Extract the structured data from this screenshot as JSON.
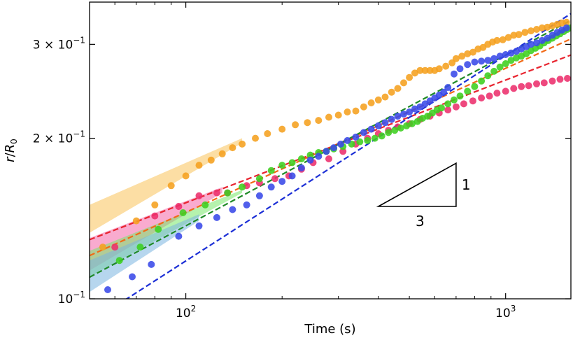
{
  "chart_data": {
    "type": "scatter",
    "xscale": "log",
    "yscale": "log",
    "xlim": [
      50,
      1600
    ],
    "ylim": [
      0.1,
      0.36
    ],
    "xlabel": "Time (s)",
    "ylabel": "r/R0",
    "xticks": [
      {
        "value": 100,
        "base": "10",
        "exp": "2"
      },
      {
        "value": 1000,
        "base": "10",
        "exp": "3"
      }
    ],
    "yticks": [
      {
        "value": 0.1,
        "mant": "",
        "exp": "−1"
      },
      {
        "value": 0.2,
        "mant": "2 × ",
        "exp": "−1"
      },
      {
        "value": 0.3,
        "mant": "3 × ",
        "exp": "−1"
      }
    ],
    "grid": false,
    "legend": "none",
    "series": [
      {
        "color": "#f5a11f",
        "fit_color": "#f26a16",
        "band_color": "#f9c35a",
        "fit": {
          "a": 0.0419,
          "slope": 0.27
        },
        "band": [
          [
            50,
            0.133,
            0.15
          ],
          [
            150,
            0.196,
            0.2
          ]
        ],
        "points": [
          [
            55,
            0.125
          ],
          [
            70,
            0.14
          ],
          [
            80,
            0.15
          ],
          [
            90,
            0.163
          ],
          [
            100,
            0.17
          ],
          [
            110,
            0.178
          ],
          [
            120,
            0.182
          ],
          [
            130,
            0.187
          ],
          [
            140,
            0.192
          ],
          [
            150,
            0.195
          ],
          [
            165,
            0.2
          ],
          [
            180,
            0.204
          ],
          [
            200,
            0.208
          ],
          [
            220,
            0.212
          ],
          [
            240,
            0.214
          ],
          [
            260,
            0.216
          ],
          [
            280,
            0.219
          ],
          [
            300,
            0.221
          ],
          [
            320,
            0.224
          ],
          [
            340,
            0.225
          ],
          [
            360,
            0.229
          ],
          [
            380,
            0.233
          ],
          [
            400,
            0.236
          ],
          [
            420,
            0.239
          ],
          [
            440,
            0.244
          ],
          [
            460,
            0.248
          ],
          [
            480,
            0.254
          ],
          [
            500,
            0.26
          ],
          [
            520,
            0.265
          ],
          [
            540,
            0.268
          ],
          [
            560,
            0.268
          ],
          [
            580,
            0.268
          ],
          [
            600,
            0.268
          ],
          [
            620,
            0.27
          ],
          [
            650,
            0.273
          ],
          [
            680,
            0.277
          ],
          [
            700,
            0.282
          ],
          [
            730,
            0.285
          ],
          [
            760,
            0.288
          ],
          [
            790,
            0.29
          ],
          [
            820,
            0.294
          ],
          [
            850,
            0.296
          ],
          [
            880,
            0.3
          ],
          [
            910,
            0.303
          ],
          [
            940,
            0.305
          ],
          [
            980,
            0.306
          ],
          [
            1020,
            0.309
          ],
          [
            1060,
            0.312
          ],
          [
            1100,
            0.313
          ],
          [
            1150,
            0.316
          ],
          [
            1200,
            0.318
          ],
          [
            1250,
            0.32
          ],
          [
            1300,
            0.322
          ],
          [
            1350,
            0.323
          ],
          [
            1400,
            0.325
          ],
          [
            1450,
            0.327
          ],
          [
            1500,
            0.329
          ],
          [
            1550,
            0.33
          ]
        ]
      },
      {
        "color": "#ec2f6c",
        "fit_color": "#e8242f",
        "band_color": "#f466a8",
        "fit": {
          "a": 0.0525,
          "slope": 0.23
        },
        "band": [
          [
            50,
            0.113,
            0.13
          ],
          [
            130,
            0.158,
            0.162
          ]
        ],
        "points": [
          [
            60,
            0.125
          ],
          [
            80,
            0.143
          ],
          [
            95,
            0.149
          ],
          [
            110,
            0.156
          ],
          [
            125,
            0.158
          ],
          [
            135,
            0.158
          ],
          [
            155,
            0.163
          ],
          [
            170,
            0.165
          ],
          [
            190,
            0.168
          ],
          [
            210,
            0.17
          ],
          [
            230,
            0.175
          ],
          [
            250,
            0.18
          ],
          [
            280,
            0.183
          ],
          [
            310,
            0.189
          ],
          [
            340,
            0.195
          ],
          [
            370,
            0.2
          ],
          [
            400,
            0.204
          ],
          [
            430,
            0.207
          ],
          [
            460,
            0.21
          ],
          [
            500,
            0.213
          ],
          [
            540,
            0.217
          ],
          [
            580,
            0.22
          ],
          [
            620,
            0.223
          ],
          [
            660,
            0.226
          ],
          [
            700,
            0.229
          ],
          [
            740,
            0.232
          ],
          [
            790,
            0.235
          ],
          [
            840,
            0.238
          ],
          [
            890,
            0.24
          ],
          [
            940,
            0.243
          ],
          [
            1000,
            0.245
          ],
          [
            1060,
            0.248
          ],
          [
            1120,
            0.25
          ],
          [
            1180,
            0.251
          ],
          [
            1250,
            0.253
          ],
          [
            1320,
            0.254
          ],
          [
            1400,
            0.256
          ],
          [
            1480,
            0.258
          ],
          [
            1560,
            0.259
          ]
        ]
      },
      {
        "color": "#3ccf1f",
        "fit_color": "#1f8a27",
        "band_color": "#78e86a",
        "fit": {
          "a": 0.0314,
          "slope": 0.32
        },
        "band": [
          [
            50,
            0.11,
            0.123
          ],
          [
            150,
            0.158,
            0.16
          ]
        ],
        "points": [
          [
            62,
            0.118
          ],
          [
            72,
            0.125
          ],
          [
            82,
            0.135
          ],
          [
            98,
            0.145
          ],
          [
            115,
            0.15
          ],
          [
            135,
            0.158
          ],
          [
            150,
            0.162
          ],
          [
            170,
            0.168
          ],
          [
            185,
            0.174
          ],
          [
            200,
            0.178
          ],
          [
            215,
            0.18
          ],
          [
            230,
            0.183
          ],
          [
            245,
            0.186
          ],
          [
            260,
            0.188
          ],
          [
            275,
            0.189
          ],
          [
            290,
            0.191
          ],
          [
            310,
            0.193
          ],
          [
            330,
            0.195
          ],
          [
            350,
            0.197
          ],
          [
            370,
            0.198
          ],
          [
            390,
            0.2
          ],
          [
            410,
            0.202
          ],
          [
            430,
            0.205
          ],
          [
            450,
            0.207
          ],
          [
            470,
            0.209
          ],
          [
            490,
            0.211
          ],
          [
            510,
            0.213
          ],
          [
            530,
            0.215
          ],
          [
            550,
            0.218
          ],
          [
            570,
            0.22
          ],
          [
            590,
            0.223
          ],
          [
            610,
            0.226
          ],
          [
            630,
            0.228
          ],
          [
            660,
            0.232
          ],
          [
            690,
            0.236
          ],
          [
            720,
            0.24
          ],
          [
            760,
            0.245
          ],
          [
            800,
            0.25
          ],
          [
            840,
            0.256
          ],
          [
            880,
            0.262
          ],
          [
            920,
            0.267
          ],
          [
            960,
            0.272
          ],
          [
            1000,
            0.276
          ],
          [
            1040,
            0.28
          ],
          [
            1080,
            0.283
          ],
          [
            1120,
            0.285
          ],
          [
            1160,
            0.288
          ],
          [
            1200,
            0.292
          ],
          [
            1240,
            0.295
          ],
          [
            1280,
            0.298
          ],
          [
            1320,
            0.302
          ],
          [
            1360,
            0.305
          ],
          [
            1400,
            0.308
          ],
          [
            1440,
            0.311
          ],
          [
            1480,
            0.314
          ],
          [
            1520,
            0.317
          ],
          [
            1560,
            0.32
          ],
          [
            1590,
            0.322
          ]
        ]
      },
      {
        "color": "#3949e8",
        "fit_color": "#1c2fd6",
        "band_color": "#7ab4e0",
        "fit": {
          "a": 0.02,
          "slope": 0.385
        },
        "band": [
          [
            50,
            0.103,
            0.118
          ],
          [
            110,
            0.14,
            0.144
          ]
        ],
        "points": [
          [
            57,
            0.104
          ],
          [
            68,
            0.11
          ],
          [
            78,
            0.116
          ],
          [
            95,
            0.131
          ],
          [
            110,
            0.137
          ],
          [
            125,
            0.142
          ],
          [
            140,
            0.147
          ],
          [
            155,
            0.15
          ],
          [
            170,
            0.156
          ],
          [
            185,
            0.162
          ],
          [
            200,
            0.166
          ],
          [
            215,
            0.17
          ],
          [
            230,
            0.176
          ],
          [
            245,
            0.182
          ],
          [
            260,
            0.185
          ],
          [
            275,
            0.189
          ],
          [
            290,
            0.192
          ],
          [
            305,
            0.195
          ],
          [
            320,
            0.198
          ],
          [
            340,
            0.201
          ],
          [
            360,
            0.205
          ],
          [
            380,
            0.208
          ],
          [
            400,
            0.211
          ],
          [
            420,
            0.214
          ],
          [
            440,
            0.217
          ],
          [
            460,
            0.22
          ],
          [
            480,
            0.222
          ],
          [
            500,
            0.224
          ],
          [
            520,
            0.227
          ],
          [
            540,
            0.229
          ],
          [
            560,
            0.232
          ],
          [
            580,
            0.235
          ],
          [
            600,
            0.238
          ],
          [
            620,
            0.241
          ],
          [
            640,
            0.244
          ],
          [
            660,
            0.249
          ],
          [
            690,
            0.264
          ],
          [
            720,
            0.27
          ],
          [
            760,
            0.275
          ],
          [
            800,
            0.278
          ],
          [
            840,
            0.279
          ],
          [
            880,
            0.28
          ],
          [
            920,
            0.282
          ],
          [
            960,
            0.285
          ],
          [
            1000,
            0.287
          ],
          [
            1040,
            0.289
          ],
          [
            1080,
            0.291
          ],
          [
            1120,
            0.294
          ],
          [
            1160,
            0.297
          ],
          [
            1200,
            0.3
          ],
          [
            1250,
            0.302
          ],
          [
            1300,
            0.305
          ],
          [
            1350,
            0.308
          ],
          [
            1400,
            0.312
          ],
          [
            1450,
            0.316
          ],
          [
            1500,
            0.319
          ],
          [
            1550,
            0.322
          ]
        ]
      }
    ],
    "slope_triangle": {
      "x0": 400,
      "x1": 700,
      "y0": 0.149,
      "rise_label": "1",
      "run_label": "3"
    }
  }
}
